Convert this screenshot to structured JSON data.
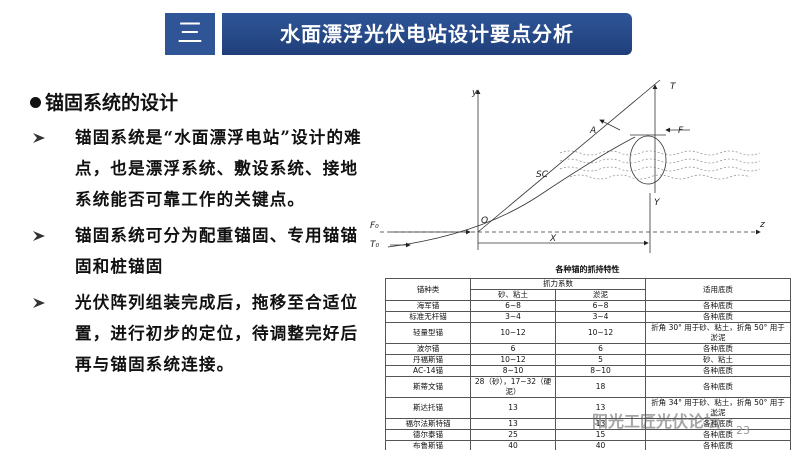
{
  "header": {
    "number": "三",
    "title": "水面漂浮光伏电站设计要点分析"
  },
  "section": {
    "heading": "锚固系统的设计",
    "bullets": [
      "锚固系统是“水面漂浮电站”设计的难点，也是漂浮系统、敷设系统、接地系统能否可靠工作的关键点。",
      "锚固系统可分为配重锚固、专用锚锚固和桩锚固",
      "光伏阵列组装完成后，拖移至合适位置，进行初步的定位，待调整完好后再与锚固系统连接。"
    ]
  },
  "diagram": {
    "labels": {
      "y": "y",
      "T": "T",
      "A": "A",
      "F": "F",
      "SC": "SC",
      "O": "O",
      "F0": "F₀",
      "T0": "T₀",
      "X": "X",
      "Y": "Y",
      "Z": "z"
    }
  },
  "table": {
    "title": "各种锚的抓持特性",
    "header": {
      "type": "锚种类",
      "coefficient": "抓力系数",
      "sand": "砂、粘土",
      "mud": "淤泥",
      "bottom": "适用底质"
    },
    "rows": [
      [
        "海军锚",
        "6~8",
        "6~8",
        "各种底质"
      ],
      [
        "标准无杆锚",
        "3~4",
        "3~4",
        "各种底质"
      ],
      [
        "轻量型锚",
        "10~12",
        "10~12",
        "折角 30° 用于砂、粘土，折角 50° 用于淤泥"
      ],
      [
        "波尔锚",
        "6",
        "6",
        "各种底质"
      ],
      [
        "丹福斯锚",
        "10~12",
        "5",
        "砂、粘土"
      ],
      [
        "AC-14锚",
        "8~10",
        "8~10",
        "各种底质"
      ],
      [
        "斯蒂文锚",
        "28（砂），17~32（硬泥）",
        "18",
        "各种底质"
      ],
      [
        "斯达托锚",
        "13",
        "13",
        "折角 34° 用于砂、粘土，折角 50° 用于淤泥"
      ],
      [
        "福尔法斯特锚",
        "13",
        "13",
        "各种底质"
      ],
      [
        "德尔泰锚",
        "25",
        "15",
        "各种底质"
      ],
      [
        "布鲁斯锚",
        "40",
        "40",
        "各种底质"
      ]
    ]
  },
  "watermark": "阳光工匠光伏论坛",
  "page_number": "23"
}
